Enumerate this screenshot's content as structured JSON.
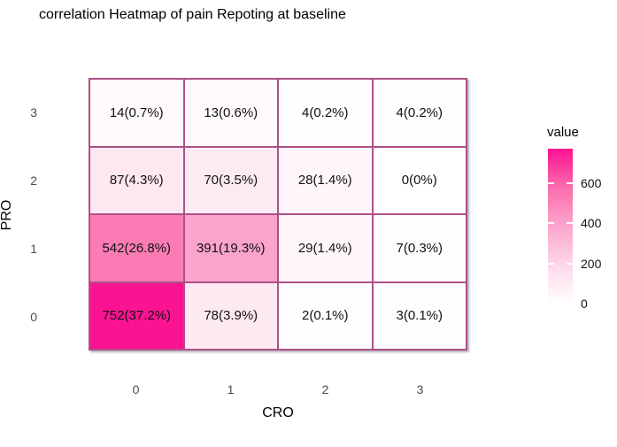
{
  "colors": {
    "cell_border": "#ad5088",
    "axis_text": "#4d4d4d",
    "cell_text": "#111111",
    "title_text": "#000000",
    "legend_high": "#fb1392",
    "legend_low": "#ffffff"
  },
  "chart_data": {
    "type": "heatmap",
    "title": "correlation Heatmap of pain Repoting at baseline",
    "xlabel": "CRO",
    "ylabel": "PRO",
    "x_tick_labels": [
      "0",
      "1",
      "2",
      "3"
    ],
    "y_tick_labels": [
      "3",
      "2",
      "1",
      "0"
    ],
    "grid": true,
    "legend": {
      "title": "value",
      "position": "right",
      "tick_labels": [
        "600",
        "400",
        "200",
        "0"
      ],
      "tick_values": [
        600,
        400,
        200,
        0
      ],
      "range_min": 0,
      "range_max": 770,
      "color_high": "#fb1392",
      "color_low": "#ffffff"
    },
    "rows": [
      {
        "pro": "3",
        "cells": [
          {
            "cro": "0",
            "count": 14,
            "pct": "0.7%",
            "label": "14(0.7%)",
            "color": "#fffafc"
          },
          {
            "cro": "1",
            "count": 13,
            "pct": "0.6%",
            "label": "13(0.6%)",
            "color": "#fffafd"
          },
          {
            "cro": "2",
            "count": 4,
            "pct": "0.2%",
            "label": "4(0.2%)",
            "color": "#fffdfe"
          },
          {
            "cro": "3",
            "count": 4,
            "pct": "0.2%",
            "label": "4(0.2%)",
            "color": "#fffdfe"
          }
        ]
      },
      {
        "pro": "2",
        "cells": [
          {
            "cro": "0",
            "count": 87,
            "pct": "4.3%",
            "label": "87(4.3%)",
            "color": "#fde7f1"
          },
          {
            "cro": "1",
            "count": 70,
            "pct": "3.5%",
            "label": "70(3.5%)",
            "color": "#fdebf3"
          },
          {
            "cro": "2",
            "count": 28,
            "pct": "1.4%",
            "label": "28(1.4%)",
            "color": "#fef6fa"
          },
          {
            "cro": "3",
            "count": 0,
            "pct": "0%",
            "label": "0(0%)",
            "color": "#ffffff"
          }
        ]
      },
      {
        "pro": "1",
        "cells": [
          {
            "cro": "0",
            "count": 542,
            "pct": "26.8%",
            "label": "542(26.8%)",
            "color": "#fb7cb5"
          },
          {
            "cro": "1",
            "count": 391,
            "pct": "19.3%",
            "label": "391(19.3%)",
            "color": "#fba4cb"
          },
          {
            "cro": "2",
            "count": 29,
            "pct": "1.4%",
            "label": "29(1.4%)",
            "color": "#fef6fa"
          },
          {
            "cro": "3",
            "count": 7,
            "pct": "0.3%",
            "label": "7(0.3%)",
            "color": "#fffcfd"
          }
        ]
      },
      {
        "pro": "0",
        "cells": [
          {
            "cro": "0",
            "count": 752,
            "pct": "37.2%",
            "label": "752(37.2%)",
            "color": "#fb1392"
          },
          {
            "cro": "1",
            "count": 78,
            "pct": "3.9%",
            "label": "78(3.9%)",
            "color": "#fde9f2"
          },
          {
            "cro": "2",
            "count": 2,
            "pct": "0.1%",
            "label": "2(0.1%)",
            "color": "#fffefe"
          },
          {
            "cro": "3",
            "count": 3,
            "pct": "0.1%",
            "label": "3(0.1%)",
            "color": "#fffefe"
          }
        ]
      }
    ]
  }
}
